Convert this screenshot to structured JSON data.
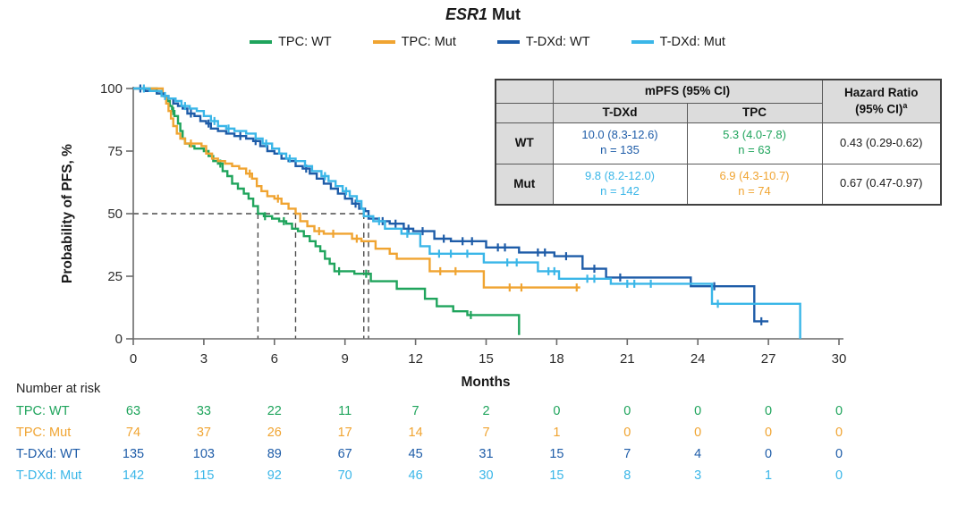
{
  "title": {
    "gene": "ESR1",
    "suffix": "Mut"
  },
  "colors": {
    "tpc_wt": "#1FA45C",
    "tpc_mut": "#F0A431",
    "tdxd_wt": "#1E5CA8",
    "tdxd_mut": "#3AB6E8",
    "axis": "#6a6a6a",
    "reference_dash": "#4c4c4c",
    "table_header_bg": "#dcdcdc"
  },
  "chart_data": {
    "type": "line",
    "subtype": "kaplan-meier-step",
    "title": "ESR1 Mut",
    "xlabel": "Months",
    "ylabel": "Probability of PFS, %",
    "xlim": [
      0,
      30
    ],
    "xticks": [
      0,
      3,
      6,
      9,
      12,
      15,
      18,
      21,
      24,
      27,
      30
    ],
    "ylim": [
      0,
      100
    ],
    "yticks": [
      0,
      25,
      50,
      75,
      100
    ],
    "grid": false,
    "legend_position": "top",
    "reference_lines": {
      "horizontal_pct": 50,
      "vertical_months": [
        5.3,
        6.9,
        9.8,
        10.0
      ]
    },
    "series": [
      {
        "name": "TPC: WT",
        "color": "#1FA45C",
        "median_months": 5.3,
        "steps": [
          [
            0,
            100
          ],
          [
            1.0,
            98
          ],
          [
            1.3,
            97
          ],
          [
            1.45,
            95
          ],
          [
            1.55,
            93
          ],
          [
            1.65,
            91
          ],
          [
            1.75,
            89
          ],
          [
            1.9,
            86
          ],
          [
            2.0,
            83
          ],
          [
            2.1,
            80
          ],
          [
            2.2,
            78
          ],
          [
            2.4,
            77
          ],
          [
            2.6,
            76
          ],
          [
            3.0,
            75
          ],
          [
            3.2,
            73
          ],
          [
            3.4,
            71
          ],
          [
            3.6,
            70
          ],
          [
            3.8,
            67
          ],
          [
            4.0,
            65
          ],
          [
            4.2,
            62
          ],
          [
            4.45,
            60
          ],
          [
            4.7,
            58
          ],
          [
            4.9,
            56
          ],
          [
            5.1,
            53
          ],
          [
            5.3,
            50
          ],
          [
            5.55,
            49
          ],
          [
            5.9,
            48
          ],
          [
            6.2,
            47
          ],
          [
            6.5,
            46
          ],
          [
            6.75,
            44
          ],
          [
            7.0,
            43
          ],
          [
            7.25,
            41
          ],
          [
            7.5,
            39
          ],
          [
            7.75,
            37
          ],
          [
            7.95,
            35
          ],
          [
            8.15,
            32
          ],
          [
            8.35,
            30
          ],
          [
            8.55,
            27
          ],
          [
            9.4,
            26
          ],
          [
            10.1,
            23
          ],
          [
            11.2,
            20
          ],
          [
            12.4,
            16
          ],
          [
            12.9,
            13
          ],
          [
            13.6,
            11
          ],
          [
            14.2,
            9.5
          ],
          [
            16.25,
            9.5
          ],
          [
            16.4,
            1.5
          ]
        ],
        "censors": [
          [
            1.7,
            91
          ],
          [
            3.7,
            70
          ],
          [
            5.6,
            49
          ],
          [
            6.4,
            47
          ],
          [
            8.75,
            27
          ],
          [
            9.9,
            26
          ],
          [
            14.35,
            9.5
          ]
        ]
      },
      {
        "name": "TPC: Mut",
        "color": "#F0A431",
        "median_months": 6.9,
        "steps": [
          [
            0,
            100
          ],
          [
            1.25,
            97
          ],
          [
            1.4,
            94
          ],
          [
            1.5,
            91
          ],
          [
            1.6,
            88
          ],
          [
            1.7,
            85
          ],
          [
            1.85,
            82
          ],
          [
            2.0,
            80
          ],
          [
            2.2,
            78
          ],
          [
            2.9,
            77
          ],
          [
            3.1,
            74
          ],
          [
            3.35,
            72
          ],
          [
            3.6,
            71
          ],
          [
            3.9,
            70
          ],
          [
            4.2,
            69
          ],
          [
            4.5,
            68
          ],
          [
            4.8,
            66
          ],
          [
            5.05,
            64
          ],
          [
            5.25,
            61
          ],
          [
            5.45,
            59
          ],
          [
            5.7,
            57
          ],
          [
            6.0,
            56
          ],
          [
            6.3,
            54
          ],
          [
            6.6,
            52
          ],
          [
            6.9,
            50
          ],
          [
            7.1,
            47
          ],
          [
            7.4,
            45
          ],
          [
            7.7,
            43
          ],
          [
            8.1,
            42
          ],
          [
            9.3,
            40
          ],
          [
            9.7,
            39
          ],
          [
            10.3,
            36
          ],
          [
            10.9,
            34
          ],
          [
            11.2,
            32
          ],
          [
            12.6,
            27
          ],
          [
            14.9,
            20.5
          ],
          [
            19.0,
            20.5
          ]
        ],
        "censors": [
          [
            2.45,
            78
          ],
          [
            4.95,
            66
          ],
          [
            6.15,
            56
          ],
          [
            7.9,
            43
          ],
          [
            8.5,
            42
          ],
          [
            9.5,
            40
          ],
          [
            13.05,
            27
          ],
          [
            13.7,
            27
          ],
          [
            16.0,
            20.5
          ],
          [
            16.5,
            20.5
          ],
          [
            18.85,
            20.5
          ]
        ]
      },
      {
        "name": "T-DXd: WT",
        "color": "#1E5CA8",
        "median_months": 10.0,
        "steps": [
          [
            0,
            100
          ],
          [
            0.5,
            99
          ],
          [
            1.0,
            98
          ],
          [
            1.3,
            97
          ],
          [
            1.5,
            96
          ],
          [
            1.7,
            94
          ],
          [
            1.9,
            93
          ],
          [
            2.1,
            92
          ],
          [
            2.3,
            90
          ],
          [
            2.6,
            89
          ],
          [
            2.85,
            87
          ],
          [
            3.1,
            86
          ],
          [
            3.3,
            84
          ],
          [
            3.6,
            83
          ],
          [
            3.95,
            82
          ],
          [
            4.3,
            81
          ],
          [
            4.8,
            80
          ],
          [
            5.1,
            79
          ],
          [
            5.4,
            77
          ],
          [
            5.7,
            75
          ],
          [
            6.0,
            74
          ],
          [
            6.3,
            72
          ],
          [
            6.6,
            71
          ],
          [
            6.9,
            69
          ],
          [
            7.2,
            68
          ],
          [
            7.5,
            66
          ],
          [
            7.8,
            64
          ],
          [
            8.1,
            62
          ],
          [
            8.4,
            60
          ],
          [
            8.7,
            58
          ],
          [
            9.0,
            56
          ],
          [
            9.3,
            54
          ],
          [
            9.6,
            52
          ],
          [
            9.85,
            51
          ],
          [
            10.0,
            48
          ],
          [
            10.45,
            47
          ],
          [
            10.9,
            46
          ],
          [
            11.5,
            44
          ],
          [
            11.9,
            43
          ],
          [
            12.8,
            40
          ],
          [
            13.5,
            39
          ],
          [
            15.0,
            36.5
          ],
          [
            16.4,
            34.5
          ],
          [
            17.9,
            33
          ],
          [
            19.1,
            28
          ],
          [
            20.1,
            24.5
          ],
          [
            23.7,
            21
          ],
          [
            26.4,
            7
          ],
          [
            27.0,
            7
          ]
        ],
        "censors": [
          [
            0.3,
            100
          ],
          [
            2.45,
            90
          ],
          [
            3.2,
            86
          ],
          [
            4.55,
            81
          ],
          [
            5.2,
            79
          ],
          [
            7.35,
            68
          ],
          [
            9.45,
            54
          ],
          [
            10.6,
            47
          ],
          [
            11.15,
            46
          ],
          [
            11.7,
            44
          ],
          [
            12.3,
            43
          ],
          [
            13.2,
            40
          ],
          [
            14.0,
            39
          ],
          [
            14.4,
            39
          ],
          [
            15.5,
            36.5
          ],
          [
            15.8,
            36.5
          ],
          [
            17.2,
            34.5
          ],
          [
            17.5,
            34.5
          ],
          [
            18.4,
            33
          ],
          [
            19.6,
            28
          ],
          [
            20.7,
            24.5
          ],
          [
            24.7,
            21
          ],
          [
            26.7,
            7
          ]
        ]
      },
      {
        "name": "T-DXd: Mut",
        "color": "#3AB6E8",
        "median_months": 9.8,
        "steps": [
          [
            0,
            100
          ],
          [
            0.7,
            99
          ],
          [
            1.2,
            97
          ],
          [
            1.5,
            96
          ],
          [
            1.8,
            95
          ],
          [
            2.05,
            93
          ],
          [
            2.4,
            92
          ],
          [
            2.7,
            91
          ],
          [
            3.0,
            89
          ],
          [
            3.3,
            87
          ],
          [
            3.6,
            85
          ],
          [
            3.95,
            84
          ],
          [
            4.3,
            83
          ],
          [
            4.8,
            82
          ],
          [
            5.2,
            80
          ],
          [
            5.5,
            78
          ],
          [
            5.9,
            76
          ],
          [
            6.2,
            74
          ],
          [
            6.5,
            72
          ],
          [
            6.9,
            71
          ],
          [
            7.3,
            69
          ],
          [
            7.6,
            67
          ],
          [
            8.0,
            65
          ],
          [
            8.3,
            63
          ],
          [
            8.6,
            61
          ],
          [
            8.9,
            59
          ],
          [
            9.2,
            57
          ],
          [
            9.5,
            55
          ],
          [
            9.7,
            52
          ],
          [
            9.8,
            49
          ],
          [
            10.2,
            47
          ],
          [
            10.7,
            44
          ],
          [
            11.4,
            42
          ],
          [
            12.2,
            37
          ],
          [
            12.6,
            34
          ],
          [
            14.9,
            30.5
          ],
          [
            17.2,
            27
          ],
          [
            18.1,
            24
          ],
          [
            20.3,
            22
          ],
          [
            24.6,
            14
          ],
          [
            28.35,
            0
          ]
        ],
        "censors": [
          [
            0.45,
            100
          ],
          [
            1.35,
            97
          ],
          [
            2.2,
            93
          ],
          [
            3.45,
            87
          ],
          [
            4.05,
            84
          ],
          [
            5.65,
            78
          ],
          [
            6.65,
            72
          ],
          [
            8.15,
            65
          ],
          [
            9.05,
            59
          ],
          [
            10.45,
            47
          ],
          [
            11.65,
            42
          ],
          [
            13.0,
            34
          ],
          [
            13.5,
            34
          ],
          [
            14.2,
            34
          ],
          [
            15.9,
            30.5
          ],
          [
            16.3,
            30.5
          ],
          [
            17.65,
            27
          ],
          [
            17.9,
            27
          ],
          [
            19.3,
            24
          ],
          [
            19.6,
            24
          ],
          [
            21.0,
            22
          ],
          [
            21.3,
            22
          ],
          [
            22.0,
            22
          ],
          [
            24.85,
            14
          ]
        ]
      }
    ]
  },
  "summary_table": {
    "col_header_group": "mPFS (95% CI)",
    "col_tdxd": "T-DXd",
    "col_tpc": "TPC",
    "col_hr": "Hazard Ratio",
    "col_hr_sub": "(95% CI)",
    "col_hr_sup": "a",
    "rows": [
      {
        "label": "WT",
        "tdxd_value": "10.0 (8.3-12.6)",
        "tdxd_n": "n = 135",
        "tpc_value": "5.3 (4.0-7.8)",
        "tpc_n": "n = 63",
        "hr": "0.43 (0.29-0.62)"
      },
      {
        "label": "Mut",
        "tdxd_value": "9.8 (8.2-12.0)",
        "tdxd_n": "n = 142",
        "tpc_value": "6.9 (4.3-10.7)",
        "tpc_n": "n = 74",
        "hr": "0.67 (0.47-0.97)"
      }
    ]
  },
  "number_at_risk": {
    "label": "Number at risk",
    "months": [
      0,
      3,
      6,
      9,
      12,
      15,
      18,
      21,
      24,
      27,
      30
    ],
    "rows": [
      {
        "label": "TPC: WT",
        "color": "#1FA45C",
        "counts": [
          63,
          33,
          22,
          11,
          7,
          2,
          0,
          0,
          0,
          0,
          0
        ]
      },
      {
        "label": "TPC: Mut",
        "color": "#F0A431",
        "counts": [
          74,
          37,
          26,
          17,
          14,
          7,
          1,
          0,
          0,
          0,
          0
        ]
      },
      {
        "label": "T-DXd: WT",
        "color": "#1E5CA8",
        "counts": [
          135,
          103,
          89,
          67,
          45,
          31,
          15,
          7,
          4,
          0,
          0
        ]
      },
      {
        "label": "T-DXd: Mut",
        "color": "#3AB6E8",
        "counts": [
          142,
          115,
          92,
          70,
          46,
          30,
          15,
          8,
          3,
          1,
          0
        ]
      }
    ]
  }
}
